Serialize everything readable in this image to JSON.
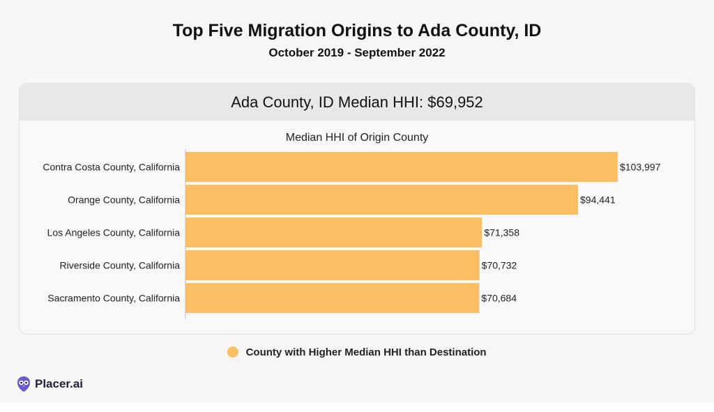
{
  "header": {
    "title": "Top Five Migration Origins to Ada County, ID",
    "subtitle": "October 2019 - September 2022"
  },
  "card": {
    "heading": "Ada County, ID Median HHI: $69,952"
  },
  "legend": {
    "label": "County with Higher Median HHI than Destination",
    "color": "#fbbe62"
  },
  "brand": {
    "name": "Placer.ai",
    "icon": "placer-owl-icon",
    "color": "#6a5acd"
  },
  "chart_data": {
    "type": "bar",
    "orientation": "horizontal",
    "title": "Median HHI of Origin County",
    "categories": [
      "Contra Costa County, California",
      "Orange County, California",
      "Los Angeles County, California",
      "Riverside County, California",
      "Sacramento County, California"
    ],
    "values": [
      103997,
      94441,
      71358,
      70732,
      70684
    ],
    "data_labels": [
      "$103,997",
      "$94,441",
      "$71,358",
      "$70,732",
      "$70,684"
    ],
    "xlim": [
      0,
      104000
    ],
    "bar_color": "#fbbe62",
    "grid": false
  }
}
